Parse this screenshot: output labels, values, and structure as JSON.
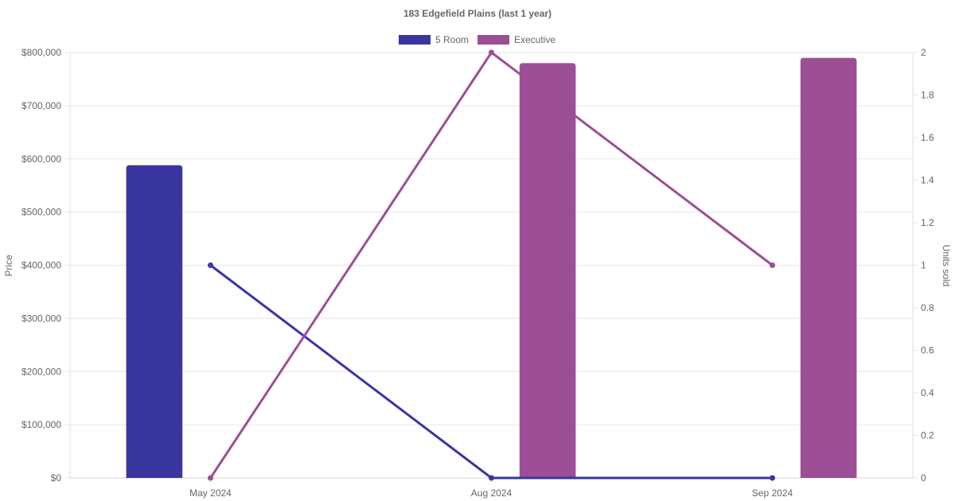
{
  "chart_data": {
    "type": "bar",
    "title": "183 Edgefield  Plains (last 1 year)",
    "categories": [
      "May 2024",
      "Aug 2024",
      "Sep 2024"
    ],
    "y_left": {
      "label": "Price",
      "range": [
        0,
        800000
      ],
      "ticks": [
        "$0",
        "$100,000",
        "$200,000",
        "$300,000",
        "$400,000",
        "$500,000",
        "$600,000",
        "$700,000",
        "$800,000"
      ]
    },
    "y_right": {
      "label": "Units sold",
      "range": [
        0,
        2
      ],
      "ticks": [
        "0",
        "0.2",
        "0.4",
        "0.6",
        "0.8",
        "1",
        "1.2",
        "1.4",
        "1.6",
        "1.8",
        "2"
      ]
    },
    "grid": true,
    "legend_position": "top",
    "series": [
      {
        "name": "5 Room",
        "color": "#3a36a0",
        "price": [
          588000,
          null,
          null
        ],
        "units_sold": [
          1,
          0,
          0
        ]
      },
      {
        "name": "Executive",
        "color": "#9c4f94",
        "price": [
          null,
          780000,
          790000
        ],
        "units_sold": [
          0,
          2,
          1
        ]
      }
    ]
  }
}
